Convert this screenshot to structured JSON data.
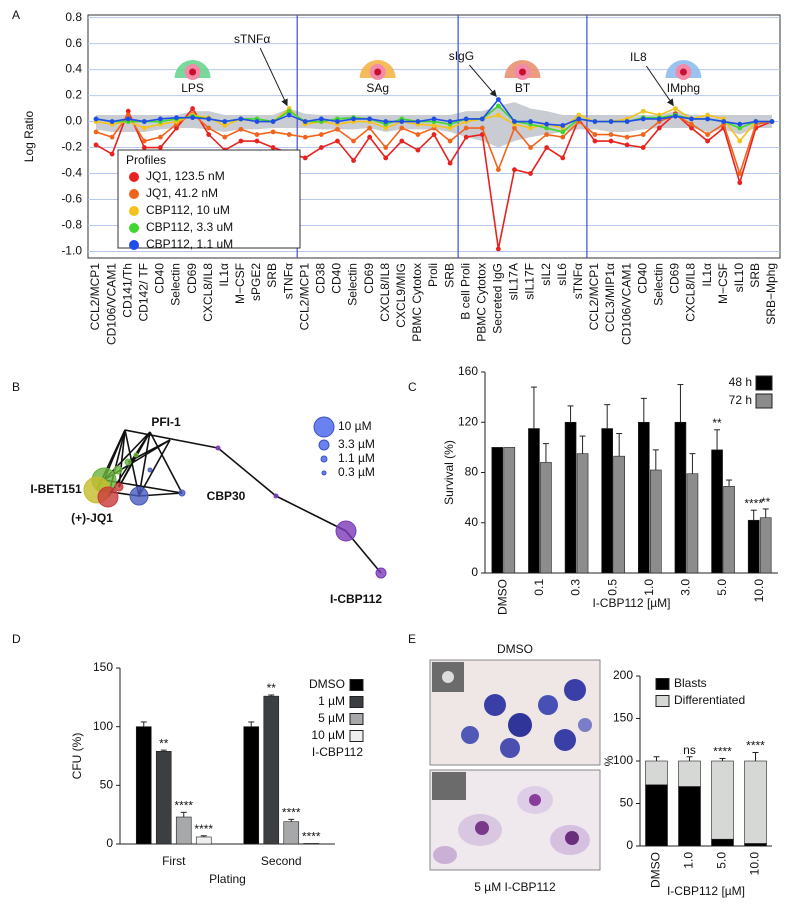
{
  "chart_data": [
    {
      "panel": "A",
      "type": "line",
      "ylabel": "Log Ratio",
      "grid": true,
      "ylim": [
        -1.05,
        0.82
      ],
      "yticks": [
        {
          "value": -1,
          "label": "-1.0"
        },
        -0.8,
        -0.6,
        -0.4,
        -0.2,
        {
          "value": 0,
          "label": "0.0"
        },
        0.2,
        0.4,
        0.6,
        0.8
      ],
      "categories": [
        "CCL2/MCP1",
        "CD106/VCAM1",
        "CD141/Th",
        "CD142/ TF",
        "CD40",
        "Selectin",
        "CD69",
        "CXCL8/IL8",
        "IL1α",
        "M−CSF",
        "sPGE2",
        "SRB",
        "sTNFα",
        "CCL2/MCP1",
        "CD38",
        "CD40",
        "Selectin",
        "CD69",
        "CXCL8/IL8",
        "CXCL9/MIG",
        "PBMC Cytotox",
        "Proli",
        "SRB",
        "B cell Proli",
        "PBMC Cytotox",
        "Secreted IgG",
        "sIL17A",
        "sIL17F",
        "sIL2",
        "sIL6",
        "sTNFα",
        "CCL2/MCP1",
        "CCL3/MIP1α",
        "CD106/VCAM1",
        "CD40",
        "Selectin",
        "CD69",
        "CXCL8/IL8",
        "IL1α",
        "M−CSF",
        "sIL10",
        "SRB",
        "SRB−Mphg"
      ],
      "sections": [
        {
          "name": "LPS",
          "start": 0
        },
        {
          "name": "SAg",
          "start": 13
        },
        {
          "name": "BT",
          "start": 23
        },
        {
          "name": "IMphg",
          "start": 31
        }
      ],
      "annotations": [
        {
          "text": "sTNFα",
          "category": 12
        },
        {
          "text": "sIgG",
          "category": 25
        },
        {
          "text": "IL8",
          "category": 36
        }
      ],
      "legend_title": "Profiles",
      "envelope": {
        "upper": [
          0.05,
          0.05,
          0.05,
          0.05,
          0.05,
          0.05,
          0.08,
          0.08,
          0.05,
          0.05,
          0.05,
          0.05,
          0.1,
          0.06,
          0.05,
          0.05,
          0.05,
          0.05,
          0.05,
          0.05,
          0.05,
          0.05,
          0.05,
          0.08,
          0.08,
          0.12,
          0.15,
          0.1,
          0.08,
          0.05,
          0.05,
          0.05,
          0.05,
          0.05,
          0.05,
          0.05,
          0.08,
          0.05,
          0.05,
          0.05,
          0.05,
          0.05,
          0.05
        ],
        "lower": [
          -0.06,
          -0.08,
          -0.08,
          -0.08,
          -0.06,
          -0.05,
          -0.05,
          -0.06,
          -0.08,
          -0.06,
          -0.06,
          -0.05,
          -0.05,
          -0.05,
          -0.06,
          -0.06,
          -0.06,
          -0.05,
          -0.08,
          -0.06,
          -0.06,
          -0.06,
          -0.08,
          -0.12,
          -0.15,
          -0.2,
          -0.15,
          -0.12,
          -0.1,
          -0.08,
          -0.06,
          -0.06,
          -0.08,
          -0.08,
          -0.06,
          -0.05,
          -0.05,
          -0.05,
          -0.08,
          -0.06,
          -0.1,
          -0.05,
          -0.05
        ],
        "color": "#c9cdd3"
      },
      "series": [
        {
          "name": "JQ1, 123.5 nM",
          "color": "#e8231f",
          "values": [
            -0.18,
            -0.25,
            0.08,
            -0.2,
            -0.2,
            -0.05,
            0.1,
            -0.1,
            -0.22,
            -0.15,
            -0.15,
            -0.2,
            -0.24,
            -0.28,
            -0.2,
            -0.15,
            -0.3,
            -0.12,
            -0.28,
            -0.15,
            -0.22,
            -0.1,
            -0.32,
            -0.12,
            -0.1,
            -0.98,
            -0.37,
            -0.4,
            -0.2,
            -0.28,
            0.02,
            -0.15,
            -0.15,
            -0.18,
            -0.2,
            -0.05,
            0.06,
            -0.05,
            -0.15,
            -0.05,
            -0.47,
            -0.05,
            0
          ]
        },
        {
          "name": "JQ1, 41.2 nM",
          "color": "#f0641e",
          "values": [
            -0.08,
            -0.12,
            0.05,
            -0.15,
            -0.12,
            -0.02,
            0.06,
            -0.05,
            -0.12,
            -0.06,
            -0.1,
            -0.08,
            -0.1,
            -0.12,
            -0.1,
            -0.06,
            -0.15,
            -0.05,
            -0.2,
            -0.05,
            -0.1,
            -0.05,
            -0.15,
            -0.05,
            -0.05,
            -0.37,
            -0.05,
            -0.2,
            -0.1,
            -0.12,
            0,
            -0.1,
            -0.1,
            -0.12,
            -0.1,
            0,
            0.05,
            -0.02,
            -0.1,
            -0.02,
            -0.4,
            -0.02,
            0
          ]
        },
        {
          "name": "CBP112, 10 uM",
          "color": "#f5c21b",
          "values": [
            0,
            -0.02,
            0,
            -0.05,
            -0.02,
            0,
            0.05,
            0.03,
            -0.03,
            0.02,
            0,
            0,
            0.1,
            -0.02,
            0,
            -0.02,
            0,
            0,
            -0.05,
            0,
            -0.02,
            -0.03,
            -0.05,
            0,
            0.02,
            0.05,
            -0.02,
            -0.05,
            -0.02,
            -0.05,
            0.05,
            0,
            0,
            0.02,
            0.08,
            0.05,
            0.1,
            0.02,
            0.05,
            0.02,
            -0.15,
            0,
            0
          ]
        },
        {
          "name": "CBP112, 3.3 uM",
          "color": "#3fd62e",
          "values": [
            0.02,
            0,
            0,
            0,
            0,
            0.02,
            0.04,
            0.02,
            0,
            0.02,
            0.02,
            0,
            0.08,
            0,
            0,
            0.02,
            0.03,
            0.02,
            -0.02,
            0.02,
            0,
            0,
            -0.02,
            0.02,
            0.02,
            0.12,
            0,
            -0.02,
            -0.05,
            -0.08,
            0.02,
            0,
            0,
            0,
            0.03,
            0.03,
            0.05,
            0.02,
            0.02,
            0,
            -0.05,
            0,
            0
          ]
        },
        {
          "name": "CBP112, 1.1 uM",
          "color": "#1f4de8",
          "values": [
            0.02,
            0,
            0.02,
            0,
            0.02,
            0.03,
            0.03,
            0.02,
            0,
            0.02,
            0,
            0,
            0.05,
            0,
            0.02,
            0,
            0.02,
            0.02,
            0,
            0,
            0,
            0.02,
            0,
            0.02,
            0.02,
            0.17,
            0,
            0,
            -0.02,
            -0.03,
            0.02,
            0,
            0,
            0,
            0.02,
            0.02,
            0.04,
            0.02,
            0.02,
            0,
            -0.02,
            0,
            0
          ]
        }
      ]
    },
    {
      "panel": "B",
      "type": "network",
      "nodes": [
        {
          "label": "PFI-1",
          "color": "#6ab43c"
        },
        {
          "label": "I-BET151",
          "color": "#c4bd2a"
        },
        {
          "label": "(+)-JQ1",
          "color": "#c83a3a"
        },
        {
          "label": "CBP30",
          "color": "#4a5bc0"
        },
        {
          "label": "I-CBP112",
          "color": "#7a3ab8"
        }
      ],
      "size_legend": [
        "10 µM",
        "3.3 µM",
        "1.1 µM",
        "0.3 µM"
      ],
      "size_color": "#6a82f0"
    },
    {
      "panel": "C",
      "type": "bar",
      "ylabel": "Survival (%)",
      "xlabel": "I-CBP112 [µM]",
      "ylim": [
        0,
        160
      ],
      "yticks": [
        0,
        40,
        80,
        120,
        160
      ],
      "categories": [
        "DMSO",
        "0.1",
        "0.3",
        "0.5",
        "1.0",
        "3.0",
        "5.0",
        "10.0"
      ],
      "series": [
        {
          "name": "48 h",
          "color": "#000000",
          "values": [
            100,
            115,
            120,
            115,
            120,
            120,
            98,
            42
          ],
          "errors": [
            0,
            33,
            13,
            19,
            19,
            30,
            16,
            8
          ],
          "significance": [
            null,
            null,
            null,
            null,
            null,
            null,
            "**",
            "****"
          ]
        },
        {
          "name": "72 h",
          "color": "#8c8c8c",
          "values": [
            100,
            88,
            95,
            93,
            82,
            79,
            69,
            44
          ],
          "errors": [
            0,
            15,
            14,
            18,
            16,
            16,
            5,
            7
          ],
          "significance": [
            null,
            null,
            null,
            null,
            null,
            null,
            null,
            "**"
          ]
        }
      ]
    },
    {
      "panel": "D",
      "type": "bar",
      "ylabel": "CFU (%)",
      "xlabel": "Plating",
      "legend_note": "I-CBP112",
      "ylim": [
        0,
        150
      ],
      "yticks": [
        0,
        50,
        100,
        150
      ],
      "categories": [
        "First",
        "Second"
      ],
      "series": [
        {
          "name": "DMSO",
          "color": "#000000",
          "values": [
            100,
            100
          ],
          "errors": [
            4,
            4
          ],
          "significance": [
            null,
            null
          ]
        },
        {
          "name": "1 µM",
          "color": "#3c3f42",
          "values": [
            79,
            126
          ],
          "errors": [
            1,
            1
          ],
          "significance": [
            "**",
            "**"
          ]
        },
        {
          "name": "5 µM",
          "color": "#a6a8aa",
          "values": [
            23,
            19
          ],
          "errors": [
            4,
            2
          ],
          "significance": [
            "****",
            "****"
          ]
        },
        {
          "name": "10 µM",
          "color": "#eef0ee",
          "values": [
            6,
            0.5
          ],
          "errors": [
            1,
            0
          ],
          "significance": [
            "****",
            "****"
          ]
        }
      ]
    },
    {
      "panel": "E",
      "type": "stacked_bar",
      "ylabel": "%",
      "xlabel": "I-CBP112 [µM]",
      "image_labels": [
        "DMSO",
        "5 µM I-CBP112"
      ],
      "ylim": [
        0,
        200
      ],
      "yticks": [
        0,
        50,
        100,
        150,
        200
      ],
      "categories": [
        "DMSO",
        "1.0",
        "5.0",
        "10.0"
      ],
      "series": [
        {
          "name": "Blasts",
          "color": "#000000",
          "values": [
            72,
            70,
            8,
            3
          ],
          "errors": [
            5,
            6,
            3,
            10
          ],
          "significance": [
            null,
            "ns",
            "****",
            "****"
          ]
        },
        {
          "name": "Differentiated",
          "color": "#d6d8d6",
          "values": [
            28,
            30,
            92,
            97
          ],
          "errors": [
            5,
            5,
            3,
            10
          ],
          "significance": [
            null,
            "ns",
            "****",
            "****"
          ]
        }
      ]
    }
  ]
}
